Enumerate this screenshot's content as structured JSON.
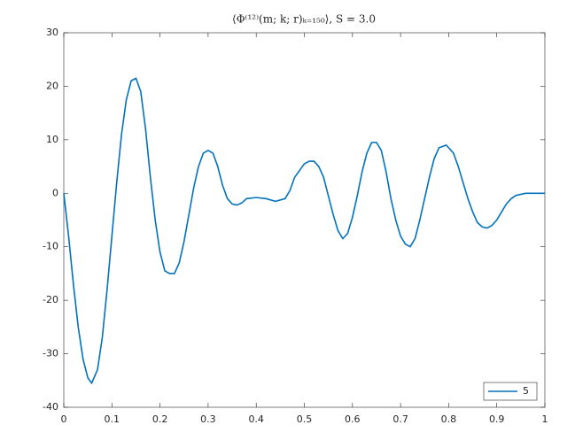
{
  "chart_data": {
    "type": "line",
    "title": "⟨Φ⁽¹²⁾(m; k; r)ₖ₌₁₅₀⟩, S = 3.0",
    "x": [
      0,
      0.01,
      0.02,
      0.03,
      0.04,
      0.05,
      0.058,
      0.07,
      0.08,
      0.09,
      0.1,
      0.11,
      0.12,
      0.13,
      0.14,
      0.15,
      0.16,
      0.17,
      0.18,
      0.19,
      0.2,
      0.21,
      0.22,
      0.23,
      0.24,
      0.25,
      0.26,
      0.27,
      0.28,
      0.29,
      0.3,
      0.31,
      0.32,
      0.33,
      0.34,
      0.35,
      0.36,
      0.37,
      0.38,
      0.4,
      0.42,
      0.44,
      0.46,
      0.47,
      0.48,
      0.5,
      0.51,
      0.52,
      0.53,
      0.54,
      0.55,
      0.56,
      0.57,
      0.58,
      0.59,
      0.6,
      0.61,
      0.62,
      0.63,
      0.64,
      0.65,
      0.66,
      0.67,
      0.68,
      0.69,
      0.7,
      0.71,
      0.72,
      0.73,
      0.74,
      0.75,
      0.76,
      0.77,
      0.78,
      0.795,
      0.81,
      0.82,
      0.83,
      0.84,
      0.85,
      0.86,
      0.87,
      0.88,
      0.89,
      0.9,
      0.91,
      0.92,
      0.93,
      0.94,
      0.96,
      1.0
    ],
    "series": [
      {
        "name": "5",
        "color": "#0072bd",
        "values": [
          0,
          -8,
          -17,
          -25,
          -31,
          -34.5,
          -35.5,
          -33,
          -27,
          -18,
          -8,
          2,
          11,
          17.5,
          21,
          21.5,
          19,
          12,
          3,
          -5,
          -11,
          -14.5,
          -15,
          -15,
          -13,
          -9,
          -4,
          1,
          5,
          7.5,
          8,
          7.5,
          5,
          1.5,
          -1,
          -2,
          -2.2,
          -1.8,
          -1,
          -0.8,
          -1,
          -1.5,
          -1,
          0.5,
          3,
          5.5,
          6,
          6,
          5,
          3,
          -0.5,
          -4,
          -7,
          -8.5,
          -7.5,
          -4.5,
          -0.5,
          4,
          7.5,
          9.5,
          9.5,
          8,
          4,
          -1,
          -5,
          -8,
          -9.5,
          -10,
          -8.5,
          -5,
          -1,
          3,
          6.5,
          8.5,
          9,
          7.5,
          5,
          2,
          -1,
          -3.5,
          -5.5,
          -6.3,
          -6.5,
          -6,
          -5,
          -3.5,
          -2,
          -1,
          -0.4,
          0,
          0
        ]
      }
    ],
    "xlim": [
      0,
      1
    ],
    "xticks": [
      0,
      0.1,
      0.2,
      0.3,
      0.4,
      0.5,
      0.6,
      0.7,
      0.8,
      0.9,
      1
    ],
    "ylim": [
      -40,
      30
    ],
    "yticks": [
      -40,
      -30,
      -20,
      -10,
      0,
      10,
      20,
      30
    ],
    "legend": "bottom-right"
  }
}
